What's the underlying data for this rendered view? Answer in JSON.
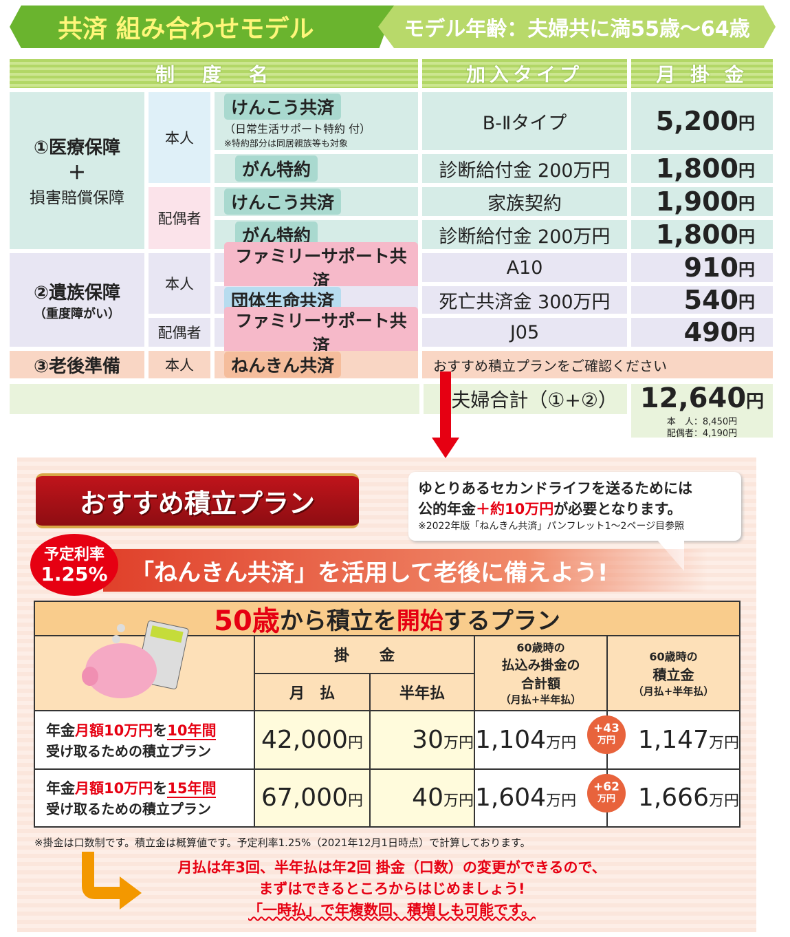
{
  "banner": {
    "title": "共済 組み合わせモデル",
    "model_age": "モデル年齢：夫婦共に満55歳〜64歳"
  },
  "table": {
    "headers": [
      "制　度　名",
      "加入タイプ",
      "月 掛 金"
    ],
    "groups": [
      {
        "label": "①医療保障",
        "plus": "＋",
        "label2": "損害賠償保障"
      },
      {
        "label": "②遺族保障",
        "sub": "（重度障がい）"
      },
      {
        "label": "③老後準備"
      }
    ],
    "persons": {
      "self": "本人",
      "spouse": "配偶者"
    },
    "rows": [
      {
        "plan": "けんこう共済",
        "note1": "（日常生活サポート特約 付）",
        "note2": "※特約部分は同居親族等も対象",
        "type": "B-Ⅱタイプ",
        "amount": "5,200",
        "unit": "円"
      },
      {
        "plan": "がん特約",
        "type": "診断給付金 200万円",
        "amount": "1,800",
        "unit": "円"
      },
      {
        "plan": "けんこう共済",
        "type": "家族契約",
        "amount": "1,900",
        "unit": "円"
      },
      {
        "plan": "がん特約",
        "type": "診断給付金 200万円",
        "amount": "1,800",
        "unit": "円"
      },
      {
        "plan": "ファミリーサポート共済",
        "type": "A10",
        "amount": "910",
        "unit": "円"
      },
      {
        "plan": "団体生命共済",
        "type": "死亡共済金 300万円",
        "amount": "540",
        "unit": "円"
      },
      {
        "plan": "ファミリーサポート共済",
        "type": "J05",
        "amount": "490",
        "unit": "円"
      },
      {
        "plan": "ねんきん共済",
        "type": "おすすめ積立プランをご確認ください"
      }
    ],
    "total": {
      "label": "夫婦合計（①+②）",
      "amount": "12,640",
      "unit": "円",
      "self": "本　人：8,450円",
      "spouse": "配偶者：4,190円"
    }
  },
  "plan": {
    "ribbon": "おすすめ積立プラン",
    "bubble1": "ゆとりあるセカンドライフを送るためには",
    "bubble2a": "公的年金",
    "bubble2b": "＋約10万円",
    "bubble2c": "が必要となります。",
    "bubble3": "※2022年版「ねんきん共済」パンフレット1〜2ページ目参照",
    "rate_label": "予定利率",
    "rate": "1.25%",
    "slogan": "「ねんきん共済」を活用して老後に備えよう!",
    "table_title_a": "50歳",
    "table_title_b": "から積立を",
    "table_title_c": "開始",
    "table_title_d": "するプラン",
    "col_kakekin": "掛　　金",
    "col_monthly": "月　払",
    "col_half": "半年払",
    "col_total": [
      "60歳時の",
      "払込み掛金の",
      "合計額",
      "（月払+半年払）"
    ],
    "col_accum": [
      "60歳時の",
      "積立金",
      "（月払+半年払）"
    ],
    "rows": [
      {
        "l1a": "年金",
        "l1b": "月額10万円",
        "l1c": "を",
        "l1d": "10年間",
        "l2": "受け取るための積立プラン",
        "monthly": "42,000",
        "half": "30",
        "paid": "1,104",
        "gain": "+43",
        "acc": "1,147"
      },
      {
        "l1a": "年金",
        "l1b": "月額10万円",
        "l1c": "を",
        "l1d": "15年間",
        "l2": "受け取るための積立プラン",
        "monthly": "67,000",
        "half": "40",
        "paid": "1,604",
        "gain": "+62",
        "acc": "1,666"
      }
    ],
    "yen": "円",
    "man_yen": "万円",
    "footnote": "※掛金は口数制です。積立金は概算値です。予定利率1.25%（2021年12月1日時点）で計算しております。",
    "msg1": "月払は年3回、半年払は年2回 掛金（口数）の変更ができるので、",
    "msg2": "まずはできるところからはじめましょう!",
    "msg3": "「一時払」で年複数回、積増しも可能です。"
  },
  "colors": {
    "green": "#6ab42e",
    "red": "#e60012",
    "orange": "#f39800"
  }
}
